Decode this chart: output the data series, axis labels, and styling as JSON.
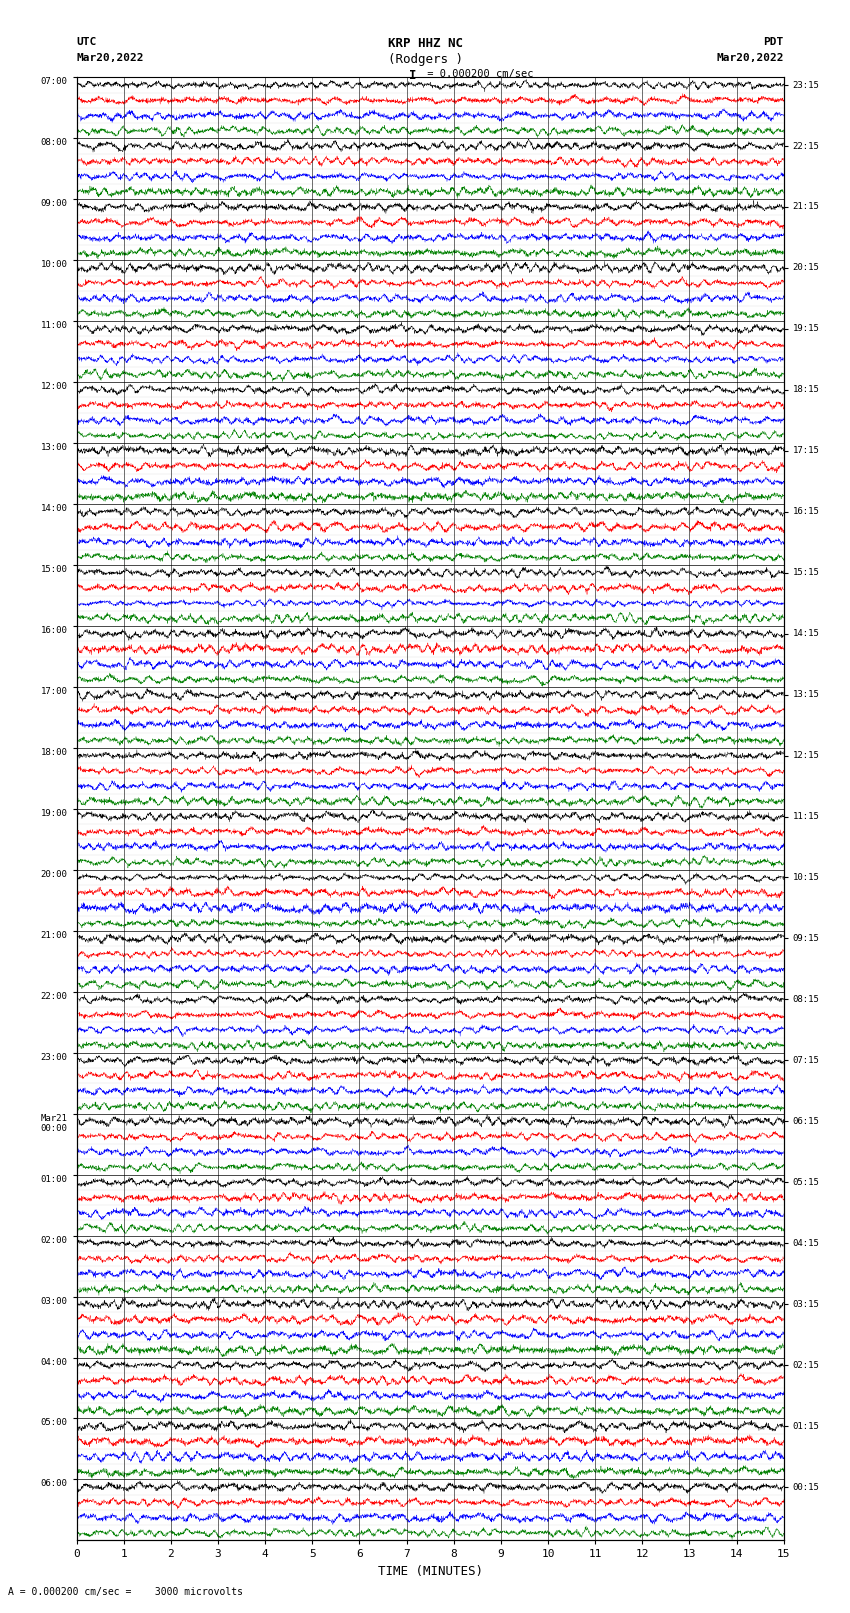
{
  "title_line1": "KRP HHZ NC",
  "title_line2": "(Rodgers )",
  "scale_label": "I  = 0.000200 cm/sec",
  "bottom_scale_text": "= 0.000200 cm/sec =    3000 microvolts",
  "utc_label": "UTC",
  "utc_date": "Mar20,2022",
  "pdt_label": "PDT",
  "pdt_date": "Mar20,2022",
  "xlabel": "TIME (MINUTES)",
  "left_times": [
    "07:00",
    "08:00",
    "09:00",
    "10:00",
    "11:00",
    "12:00",
    "13:00",
    "14:00",
    "15:00",
    "16:00",
    "17:00",
    "18:00",
    "19:00",
    "20:00",
    "21:00",
    "22:00",
    "23:00",
    "Mar21\n00:00",
    "01:00",
    "02:00",
    "03:00",
    "04:00",
    "05:00",
    "06:00"
  ],
  "right_times": [
    "00:15",
    "01:15",
    "02:15",
    "03:15",
    "04:15",
    "05:15",
    "06:15",
    "07:15",
    "08:15",
    "09:15",
    "10:15",
    "11:15",
    "12:15",
    "13:15",
    "14:15",
    "15:15",
    "16:15",
    "17:15",
    "18:15",
    "19:15",
    "20:15",
    "21:15",
    "22:15",
    "23:15"
  ],
  "trace_colors": [
    "black",
    "red",
    "blue",
    "green"
  ],
  "num_hours": 24,
  "traces_per_hour": 4,
  "x_ticks": [
    0,
    1,
    2,
    3,
    4,
    5,
    6,
    7,
    8,
    9,
    10,
    11,
    12,
    13,
    14,
    15
  ],
  "amplitude": 0.45,
  "lw": 0.3,
  "noise_seed": 1234,
  "fig_width": 8.5,
  "fig_height": 16.13,
  "dpi": 100,
  "samples_per_trace": 3000
}
